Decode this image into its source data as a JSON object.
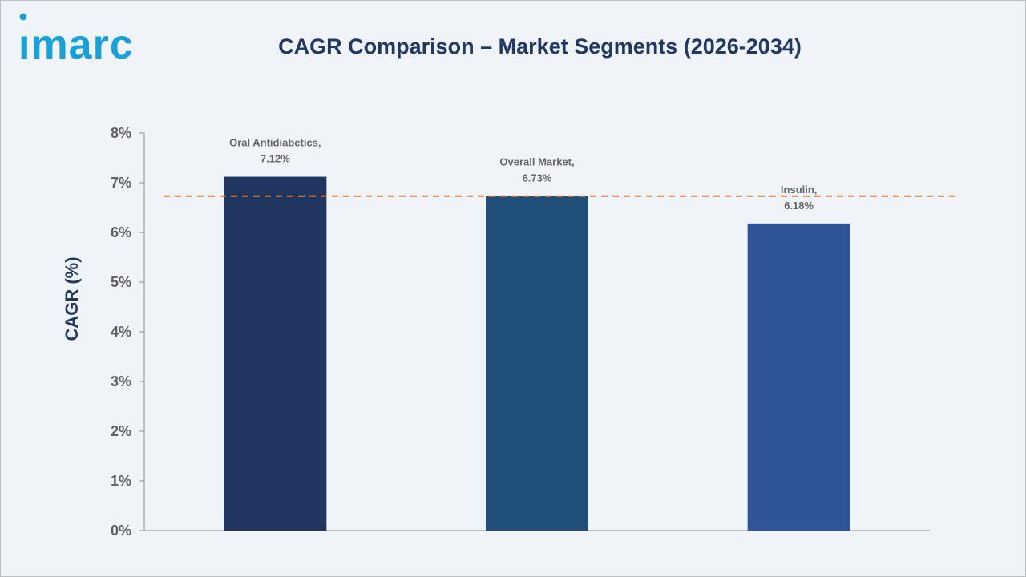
{
  "brand": {
    "logo_text": "imarc",
    "colors": {
      "logo": "#1aa0d8",
      "title": "#1f3864",
      "background": "#f0f3f8",
      "reference_line": "#e07b39"
    }
  },
  "chart_data": {
    "type": "bar",
    "title": "CAGR Comparison – Market Segments (2026-2034)",
    "xlabel": "",
    "ylabel": "CAGR (%)",
    "ylim": [
      0,
      8
    ],
    "yticks": [
      "0%",
      "1%",
      "2%",
      "3%",
      "4%",
      "5%",
      "6%",
      "7%",
      "8%"
    ],
    "categories": [
      "Oral Antidiabetics",
      "Overall Market",
      "Insulin"
    ],
    "values": [
      7.12,
      6.73,
      6.18
    ],
    "data_labels": [
      [
        "Oral Antidiabetics,",
        "7.12%"
      ],
      [
        "Overall Market,",
        "6.73%"
      ],
      [
        "Insulin,",
        "6.18%"
      ]
    ],
    "bar_colors": [
      "#1f3560",
      "#1f4e79",
      "#2e5597"
    ],
    "reference_line": {
      "value": 6.73,
      "style": "dashed"
    },
    "grid": false,
    "legend": "none"
  }
}
